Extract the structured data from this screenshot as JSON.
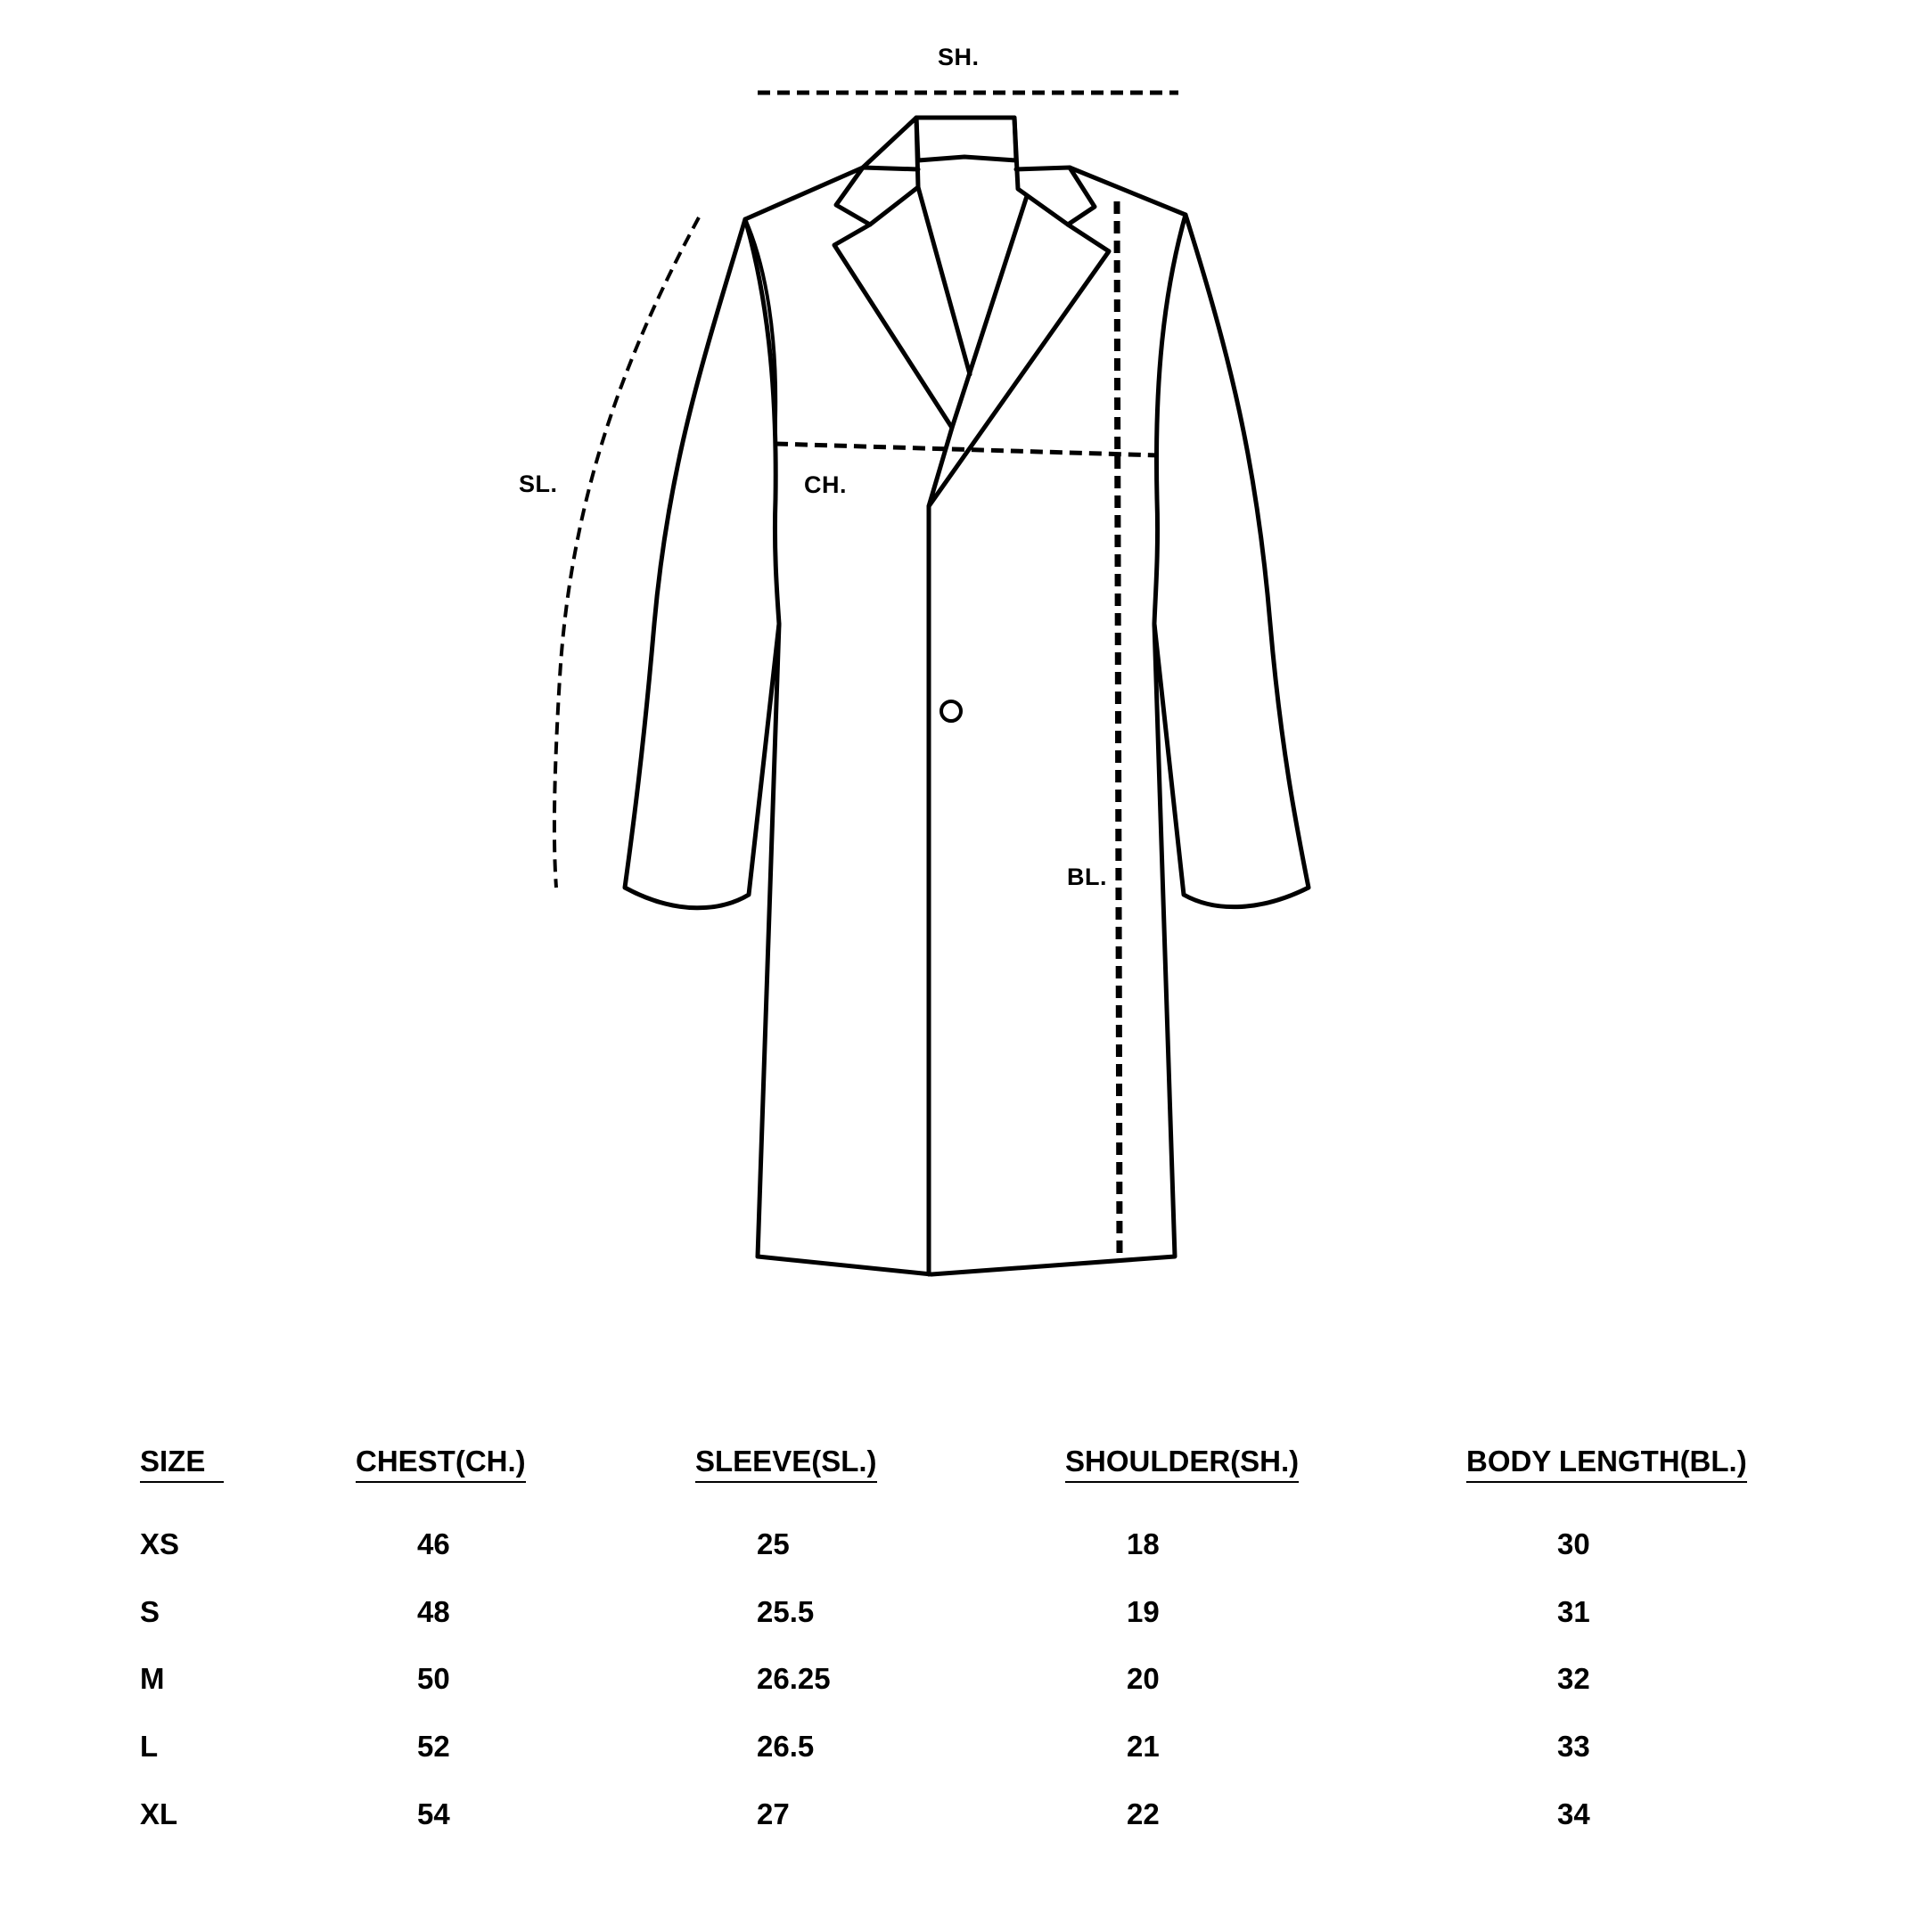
{
  "diagram": {
    "labels": {
      "shoulder": "SH.",
      "sleeve": "SL.",
      "chest": "CH.",
      "body_length": "BL."
    },
    "line_color": "#000000"
  },
  "size_table": {
    "headers": {
      "size": "SIZE",
      "chest": "CHEST(CH.)",
      "sleeve": "SLEEVE(SL.)",
      "shoulder": "SHOULDER(SH.)",
      "body_length": "BODY LENGTH(BL.)"
    },
    "rows": [
      {
        "size": "XS",
        "chest": "46",
        "sleeve": "25",
        "shoulder": "18",
        "body_length": "30"
      },
      {
        "size": "S",
        "chest": "48",
        "sleeve": "25.5",
        "shoulder": "19",
        "body_length": "31"
      },
      {
        "size": "M",
        "chest": "50",
        "sleeve": "26.25",
        "shoulder": "20",
        "body_length": "32"
      },
      {
        "size": "L",
        "chest": "52",
        "sleeve": "26.5",
        "shoulder": "21",
        "body_length": "33"
      },
      {
        "size": "XL",
        "chest": "54",
        "sleeve": "27",
        "shoulder": "22",
        "body_length": "34"
      }
    ]
  }
}
